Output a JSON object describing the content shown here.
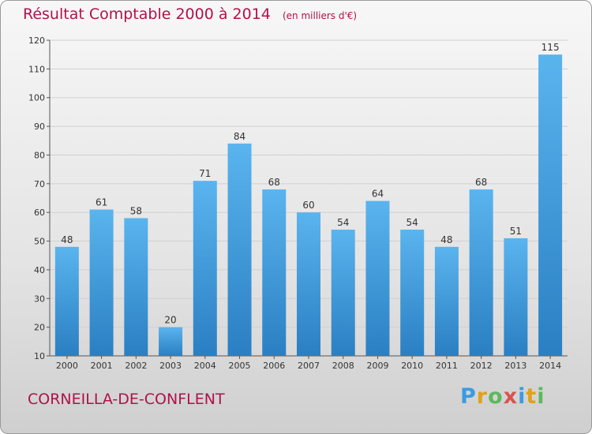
{
  "chart_data": {
    "type": "bar",
    "title": "Résultat Comptable 2000 à 2014",
    "subtitle": "(en milliers d'€)",
    "categories": [
      "2000",
      "2001",
      "2002",
      "2003",
      "2004",
      "2005",
      "2006",
      "2007",
      "2008",
      "2009",
      "2010",
      "2011",
      "2012",
      "2013",
      "2014"
    ],
    "values": [
      48,
      61,
      58,
      20,
      71,
      84,
      68,
      60,
      54,
      64,
      54,
      48,
      68,
      51,
      115
    ],
    "ylim": [
      10,
      120
    ],
    "yticks": [
      10,
      20,
      30,
      40,
      50,
      60,
      70,
      80,
      90,
      100,
      110,
      120
    ],
    "grid": true,
    "xlabel": "",
    "ylabel": ""
  },
  "footer": {
    "commune": "CORNEILLA-DE-CONFLENT",
    "logo": "Proxiti"
  },
  "colors": {
    "bar_top": "#5ab4ee",
    "bar_bottom": "#2a7fc2",
    "title": "#b0124a",
    "grid": "#d0d0d0"
  }
}
